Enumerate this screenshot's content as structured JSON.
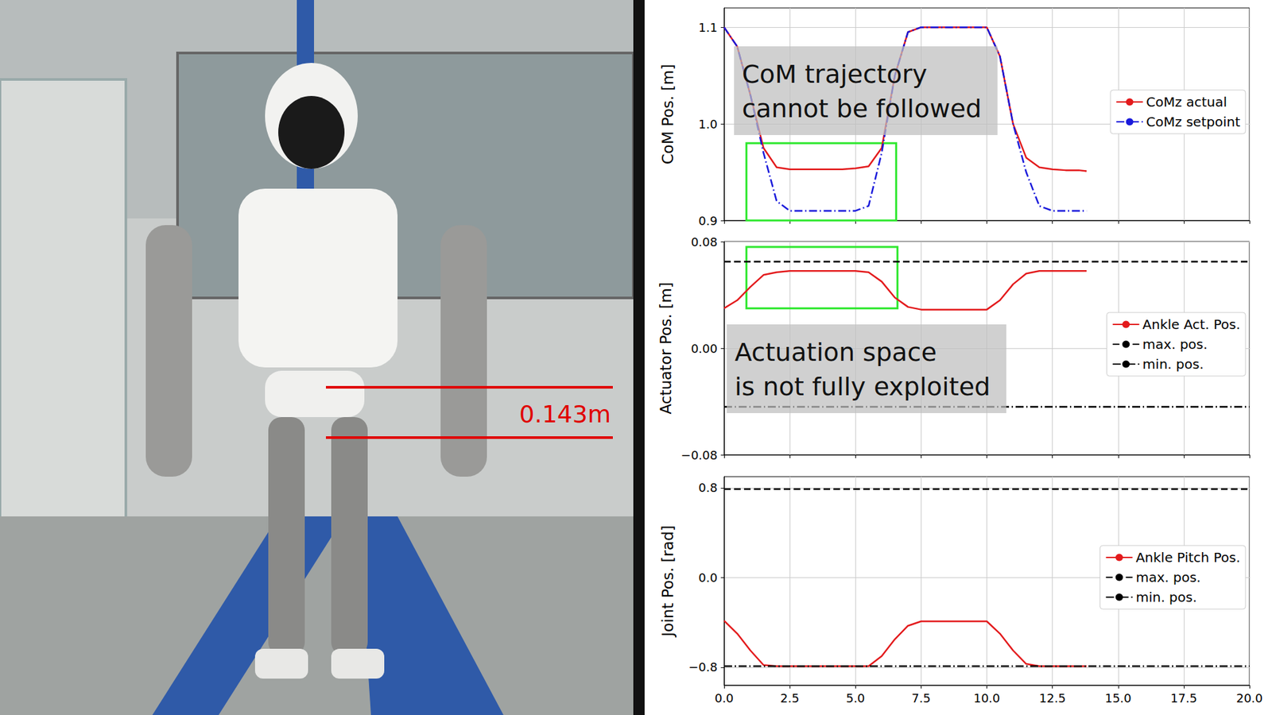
{
  "chart_data": [
    {
      "type": "line",
      "y_label": "CoM Pos. [m]",
      "xlim": [
        0,
        20
      ],
      "xticks": [
        {
          "value": 0,
          "label": "0.0"
        },
        2.5,
        {
          "value": 5,
          "label": "5.0"
        },
        7.5,
        {
          "value": 10,
          "label": "10.0"
        },
        12.5,
        {
          "value": 15,
          "label": "15.0"
        },
        17.5,
        {
          "value": 20,
          "label": "20.0"
        }
      ],
      "ylim": [
        0.9,
        1.12
      ],
      "yticks": [
        0.9,
        {
          "value": 1,
          "label": "1.0"
        },
        1.1
      ],
      "grid": true,
      "legend": "center right",
      "tick_labels": "y",
      "annotation": "CoM trajectory\ncannot be followed",
      "highlight": {
        "x": [
          0.85,
          6.55
        ],
        "y": [
          0.9,
          0.98
        ]
      },
      "series": [
        {
          "name": "CoMz actual",
          "color": "#e31a1c",
          "line_style": "solid",
          "x": [
            0,
            0.5,
            1,
            1.5,
            2,
            2.5,
            3,
            3.5,
            4,
            4.5,
            5,
            5.5,
            6,
            6.5,
            7,
            7.5,
            8,
            8.5,
            9,
            9.5,
            10,
            10.5,
            11,
            11.5,
            12,
            12.5,
            13,
            13.5,
            13.8
          ],
          "values": [
            1.1,
            1.08,
            1.03,
            0.975,
            0.955,
            0.953,
            0.953,
            0.953,
            0.953,
            0.953,
            0.954,
            0.956,
            0.975,
            1.05,
            1.095,
            1.1,
            1.1,
            1.1,
            1.1,
            1.1,
            1.1,
            1.07,
            1.0,
            0.965,
            0.955,
            0.953,
            0.952,
            0.952,
            0.951
          ]
        },
        {
          "name": "CoMz setpoint",
          "color": "#1a1adb",
          "line_style": "dashdot",
          "x": [
            0,
            0.5,
            1,
            1.5,
            2,
            2.5,
            3,
            3.5,
            4,
            4.5,
            5,
            5.5,
            6,
            6.5,
            7,
            7.5,
            8,
            8.5,
            9,
            9.5,
            10,
            10.5,
            11,
            11.5,
            12,
            12.5,
            13,
            13.5,
            13.8
          ],
          "values": [
            1.1,
            1.08,
            1.03,
            0.97,
            0.92,
            0.91,
            0.91,
            0.91,
            0.91,
            0.91,
            0.91,
            0.915,
            0.97,
            1.05,
            1.095,
            1.1,
            1.1,
            1.1,
            1.1,
            1.1,
            1.1,
            1.07,
            1.0,
            0.95,
            0.915,
            0.91,
            0.91,
            0.91,
            0.91
          ]
        }
      ]
    },
    {
      "type": "line",
      "y_label": "Actuator Pos. [m]",
      "xlim": [
        0,
        20
      ],
      "xticks": [
        {
          "value": 0,
          "label": "0.0"
        },
        2.5,
        {
          "value": 5,
          "label": "5.0"
        },
        7.5,
        {
          "value": 10,
          "label": "10.0"
        },
        12.5,
        {
          "value": 15,
          "label": "15.0"
        },
        17.5,
        {
          "value": 20,
          "label": "20.0"
        }
      ],
      "ylim": [
        -0.08,
        0.08
      ],
      "yticks": [
        {
          "value": -0.08,
          "label": "−0.08"
        },
        {
          "value": 0,
          "label": "0.00"
        },
        0.08
      ],
      "grid": true,
      "legend": "center right",
      "tick_labels": "y",
      "annotation": "Actuation space\nis not fully exploited",
      "highlight": {
        "x": [
          0.85,
          6.6
        ],
        "y": [
          0.03,
          0.076
        ]
      },
      "series": [
        {
          "name": "Ankle Act. Pos.",
          "color": "#e31a1c",
          "line_style": "solid",
          "x": [
            0,
            0.5,
            1,
            1.5,
            2,
            2.5,
            3,
            3.5,
            4,
            4.5,
            5,
            5.5,
            6,
            6.5,
            7,
            7.5,
            8,
            8.5,
            9,
            9.5,
            10,
            10.5,
            11,
            11.5,
            12,
            12.5,
            13,
            13.5,
            13.8
          ],
          "values": [
            0.03,
            0.036,
            0.046,
            0.055,
            0.057,
            0.058,
            0.058,
            0.058,
            0.058,
            0.058,
            0.058,
            0.057,
            0.05,
            0.038,
            0.031,
            0.029,
            0.029,
            0.029,
            0.029,
            0.029,
            0.029,
            0.036,
            0.048,
            0.056,
            0.058,
            0.058,
            0.058,
            0.058,
            0.058
          ]
        },
        {
          "name": "max. pos.",
          "color": "#000000",
          "line_style": "dashed",
          "x": [
            0,
            20
          ],
          "values": [
            0.065,
            0.065
          ]
        },
        {
          "name": "min. pos.",
          "color": "#000000",
          "line_style": "dashdot",
          "x": [
            0,
            20
          ],
          "values": [
            -0.044,
            -0.044
          ]
        }
      ]
    },
    {
      "type": "line",
      "y_label": "Joint Pos. [rad]",
      "xlim": [
        0,
        20
      ],
      "xticks": [
        {
          "value": 0,
          "label": "0.0"
        },
        2.5,
        {
          "value": 5,
          "label": "5.0"
        },
        7.5,
        {
          "value": 10,
          "label": "10.0"
        },
        12.5,
        {
          "value": 15,
          "label": "15.0"
        },
        17.5,
        {
          "value": 20,
          "label": "20.0"
        }
      ],
      "ylim": [
        -0.96,
        0.9
      ],
      "yticks": [
        {
          "value": -0.8,
          "label": "−0.8"
        },
        {
          "value": 0,
          "label": "0.0"
        },
        0.8
      ],
      "grid": true,
      "legend": "center right",
      "tick_labels": true,
      "series": [
        {
          "name": "Ankle Pitch Pos.",
          "color": "#e31a1c",
          "line_style": "solid",
          "x": [
            0,
            0.5,
            1,
            1.5,
            2,
            2.5,
            3,
            3.5,
            4,
            4.5,
            5,
            5.5,
            6,
            6.5,
            7,
            7.5,
            8,
            8.5,
            9,
            9.5,
            10,
            10.5,
            11,
            11.5,
            12,
            12.5,
            13,
            13.5,
            13.8
          ],
          "values": [
            -0.385,
            -0.5,
            -0.65,
            -0.78,
            -0.79,
            -0.79,
            -0.79,
            -0.79,
            -0.79,
            -0.79,
            -0.79,
            -0.79,
            -0.7,
            -0.55,
            -0.43,
            -0.39,
            -0.39,
            -0.39,
            -0.39,
            -0.39,
            -0.39,
            -0.5,
            -0.65,
            -0.77,
            -0.79,
            -0.79,
            -0.79,
            -0.79,
            -0.79
          ]
        },
        {
          "name": "max. pos.",
          "color": "#000000",
          "line_style": "dashed",
          "x": [
            0,
            20
          ],
          "values": [
            0.79,
            0.79
          ]
        },
        {
          "name": "min. pos.",
          "color": "#000000",
          "line_style": "dashdot",
          "x": [
            0,
            20
          ],
          "values": [
            -0.79,
            -0.79
          ]
        }
      ]
    }
  ],
  "photo": {
    "label": "0.143m"
  }
}
